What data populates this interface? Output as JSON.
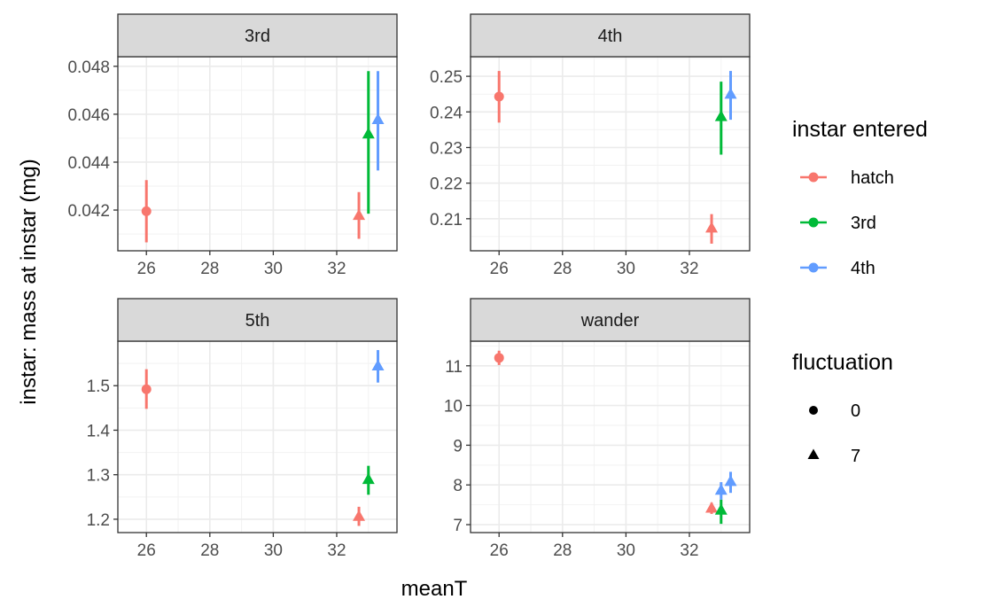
{
  "chart_data": {
    "type": "scatter",
    "xlabel": "meanT",
    "ylabel": "instar: mass at instar (mg)",
    "x_ticks": [
      26,
      28,
      30,
      32
    ],
    "xlim": [
      25.1,
      33.9
    ],
    "colors": {
      "hatch": "#F8766D",
      "3rd": "#00BA38",
      "4th": "#619CFF"
    },
    "legends": [
      {
        "title": "instar entered",
        "kind": "color",
        "entries": [
          {
            "label": "hatch",
            "color": "#F8766D"
          },
          {
            "label": "3rd",
            "color": "#00BA38"
          },
          {
            "label": "4th",
            "color": "#619CFF"
          }
        ]
      },
      {
        "title": "fluctuation",
        "kind": "shape",
        "entries": [
          {
            "label": "0",
            "shape": "circle"
          },
          {
            "label": "7",
            "shape": "triangle"
          }
        ]
      }
    ],
    "panels": [
      {
        "strip": "3rd",
        "ylim": [
          0.0403,
          0.0484
        ],
        "y_ticks": [
          0.042,
          0.044,
          0.046,
          0.048
        ],
        "y_tick_labels": [
          "0.042",
          "0.044",
          "0.046",
          "0.048"
        ],
        "points": [
          {
            "group": "hatch",
            "fluct": "0",
            "x": 26.0,
            "y": 0.04195,
            "lo": 0.04065,
            "hi": 0.04325
          },
          {
            "group": "hatch",
            "fluct": "7",
            "x": 32.7,
            "y": 0.04175,
            "lo": 0.0408,
            "hi": 0.04275
          },
          {
            "group": "3rd",
            "fluct": "7",
            "x": 33.0,
            "y": 0.04515,
            "lo": 0.04185,
            "hi": 0.0478
          },
          {
            "group": "4th",
            "fluct": "7",
            "x": 33.3,
            "y": 0.04575,
            "lo": 0.04365,
            "hi": 0.0478
          }
        ]
      },
      {
        "strip": "4th",
        "ylim": [
          0.201,
          0.2555
        ],
        "y_ticks": [
          0.21,
          0.22,
          0.23,
          0.24,
          0.25
        ],
        "y_tick_labels": [
          "0.21",
          "0.22",
          "0.23",
          "0.24",
          "0.25"
        ],
        "points": [
          {
            "group": "hatch",
            "fluct": "0",
            "x": 26.0,
            "y": 0.2443,
            "lo": 0.237,
            "hi": 0.2515
          },
          {
            "group": "hatch",
            "fluct": "7",
            "x": 32.7,
            "y": 0.2072,
            "lo": 0.203,
            "hi": 0.2113
          },
          {
            "group": "3rd",
            "fluct": "7",
            "x": 33.0,
            "y": 0.2385,
            "lo": 0.228,
            "hi": 0.2485
          },
          {
            "group": "4th",
            "fluct": "7",
            "x": 33.3,
            "y": 0.2448,
            "lo": 0.2378,
            "hi": 0.2515
          }
        ]
      },
      {
        "strip": "5th",
        "ylim": [
          1.17,
          1.6
        ],
        "y_ticks": [
          1.2,
          1.3,
          1.4,
          1.5
        ],
        "y_tick_labels": [
          "1.2",
          "1.3",
          "1.4",
          "1.5"
        ],
        "points": [
          {
            "group": "hatch",
            "fluct": "0",
            "x": 26.0,
            "y": 1.492,
            "lo": 1.448,
            "hi": 1.537
          },
          {
            "group": "hatch",
            "fluct": "7",
            "x": 32.7,
            "y": 1.205,
            "lo": 1.185,
            "hi": 1.228
          },
          {
            "group": "3rd",
            "fluct": "7",
            "x": 33.0,
            "y": 1.288,
            "lo": 1.255,
            "hi": 1.32
          },
          {
            "group": "4th",
            "fluct": "7",
            "x": 33.3,
            "y": 1.543,
            "lo": 1.507,
            "hi": 1.58
          }
        ]
      },
      {
        "strip": "wander",
        "ylim": [
          6.8,
          11.62
        ],
        "y_ticks": [
          7,
          8,
          9,
          10,
          11
        ],
        "y_tick_labels": [
          "7",
          "8",
          "9",
          "10",
          "11"
        ],
        "points": [
          {
            "group": "hatch",
            "fluct": "0",
            "x": 26.0,
            "y": 11.2,
            "lo": 11.02,
            "hi": 11.38
          },
          {
            "group": "hatch",
            "fluct": "7",
            "x": 32.7,
            "y": 7.4,
            "lo": 7.27,
            "hi": 7.55
          },
          {
            "group": "3rd",
            "fluct": "7",
            "x": 33.0,
            "y": 7.35,
            "lo": 7.02,
            "hi": 7.63
          },
          {
            "group": "4th",
            "fluct": "7",
            "x": 33.3,
            "y": 8.07,
            "lo": 7.8,
            "hi": 8.33
          },
          {
            "group": "4th",
            "fluct": "7",
            "x": 33.0,
            "y": 7.85,
            "lo": 7.63,
            "hi": 8.07
          }
        ]
      }
    ]
  }
}
